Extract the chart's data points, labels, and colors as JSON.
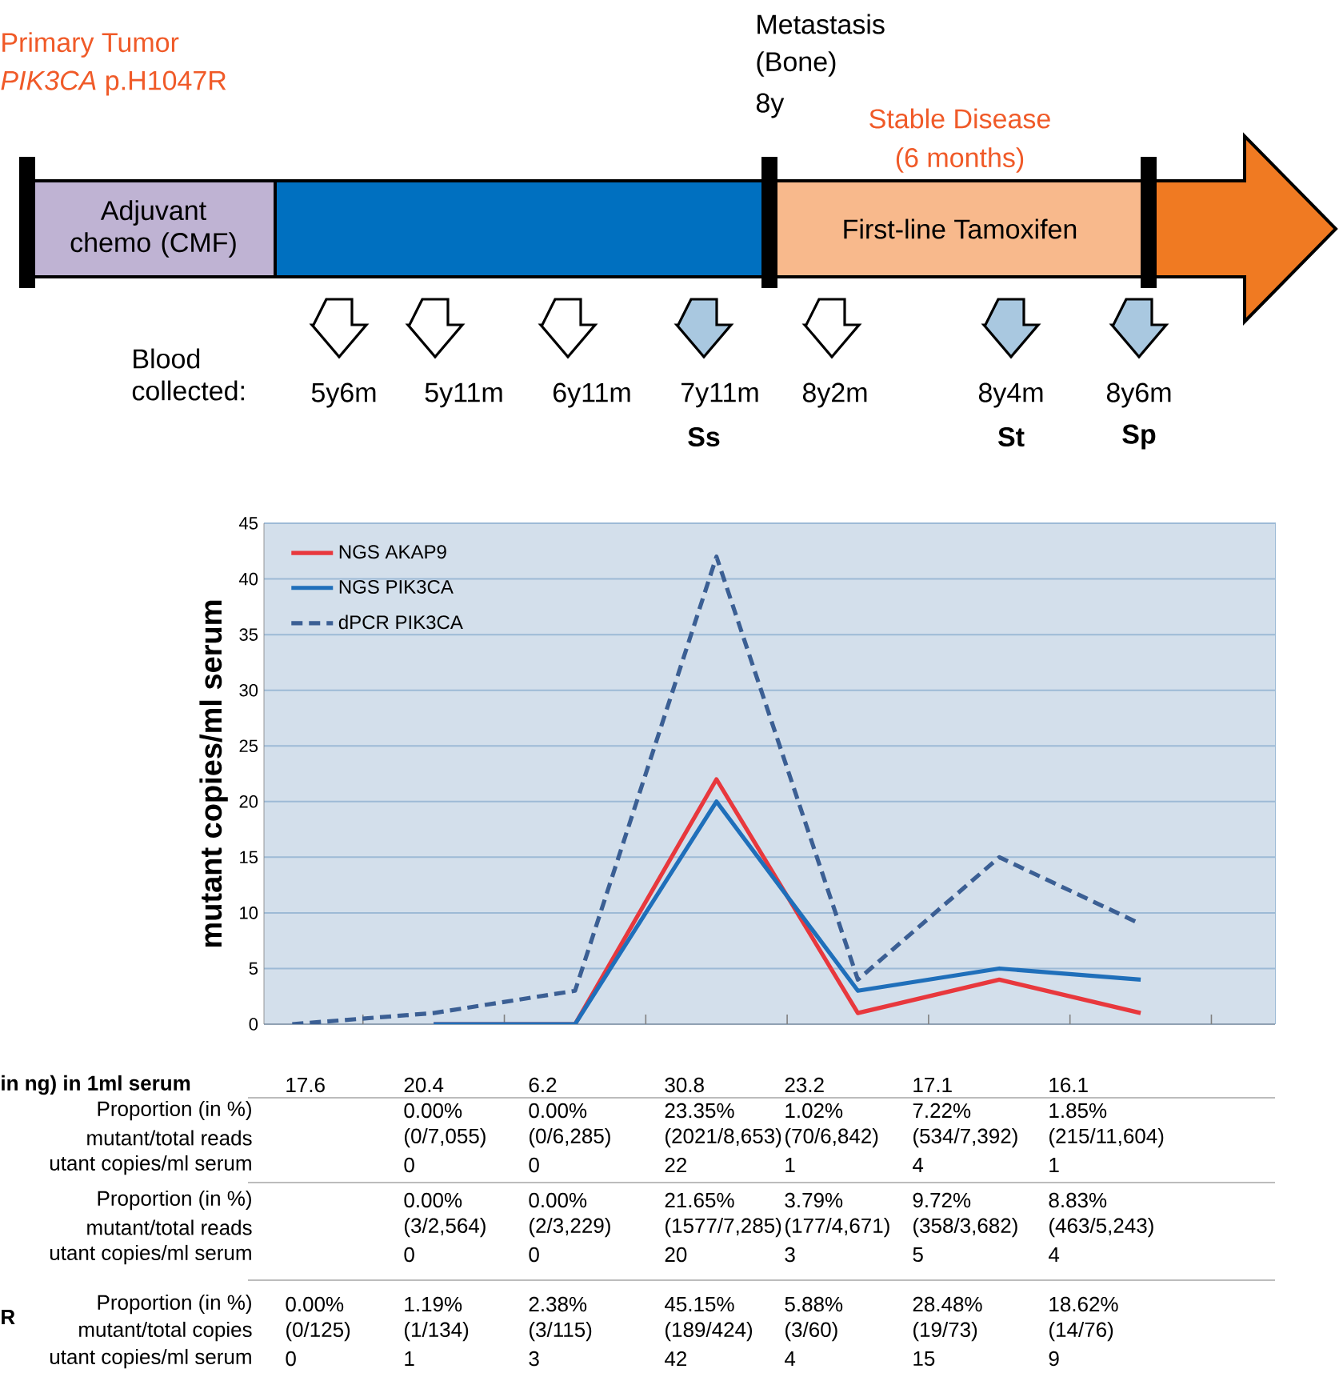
{
  "chart_data": {
    "type": "line",
    "categories": [
      null,
      null,
      null,
      null,
      null,
      null,
      null
    ],
    "series": [
      {
        "name": "NGS AKAP9",
        "color": "#e8383d",
        "line_style": "solid",
        "values": [
          null,
          0,
          0,
          22,
          1,
          4,
          1
        ]
      },
      {
        "name": "NGS PIK3CA",
        "color": "#1f6fba",
        "line_style": "solid",
        "values": [
          null,
          0,
          0,
          20,
          3,
          5,
          4
        ]
      },
      {
        "name": "dPCR PIK3CA",
        "color": "#3b5f94",
        "line_style": "dashed",
        "values": [
          0,
          1,
          3,
          42,
          4,
          15,
          9
        ]
      }
    ],
    "ylabel": "mutant copies/ml serum",
    "ylim": [
      0,
      45
    ],
    "yticks": [
      0,
      5,
      10,
      15,
      20,
      25,
      30,
      35,
      40,
      45
    ],
    "grid": "y",
    "legend": "top left",
    "annotations": [
      "Primary Tumor",
      "*PIK3CA* p.H1047R",
      "Metastasis",
      "(Bone)",
      "8y",
      "Stable Disease",
      "(6 months)",
      "Adjuvant chemo (CMF)",
      "First-line Tamoxifen",
      "Blood collected:",
      "5y6m",
      "5y11m",
      "6y11m",
      "7y11m",
      "8y2m",
      "8y4m",
      "8y6m",
      "Ss",
      "St",
      "Sp",
      "in ng) in 1ml serum",
      "17.6",
      "20.4",
      "6.2",
      "30.8",
      "23.2",
      "17.1",
      "16.1",
      "Proportion (in %)",
      "mutant/total reads",
      "utant copies/ml serum",
      "0.00%",
      "0.00%",
      "23.35%",
      "1.02%",
      "7.22%",
      "1.85%",
      "(0/7,055)",
      "(0/6,285)",
      "(2021/8,653)",
      "(70/6,842)",
      "(534/7,392)",
      "(215/11,604)",
      "Proportion (in %)",
      "mutant/total reads",
      "utant copies/ml serum",
      "0.00%",
      "0.00%",
      "21.65%",
      "3.79%",
      "9.72%",
      "8.83%",
      "(3/2,564)",
      "(2/3,229)",
      "(1577/7,285)",
      "(177/4,671)",
      "(358/3,682)",
      "(463/5,243)",
      "R",
      "Proportion (in %)",
      "mutant/total copies",
      "utant copies/ml serum",
      "0.00%",
      "1.19%",
      "2.38%",
      "45.15%",
      "5.88%",
      "28.48%",
      "18.62%",
      "(0/125)",
      "(1/134)",
      "(3/115)",
      "(189/424)",
      "(3/60)",
      "(19/73)",
      "(14/76)",
      "0",
      "0",
      "22",
      "1",
      "4",
      "1",
      "0",
      "0",
      "20",
      "3",
      "5",
      "4",
      "0",
      "1",
      "3",
      "42",
      "4",
      "15",
      "9"
    ]
  }
}
